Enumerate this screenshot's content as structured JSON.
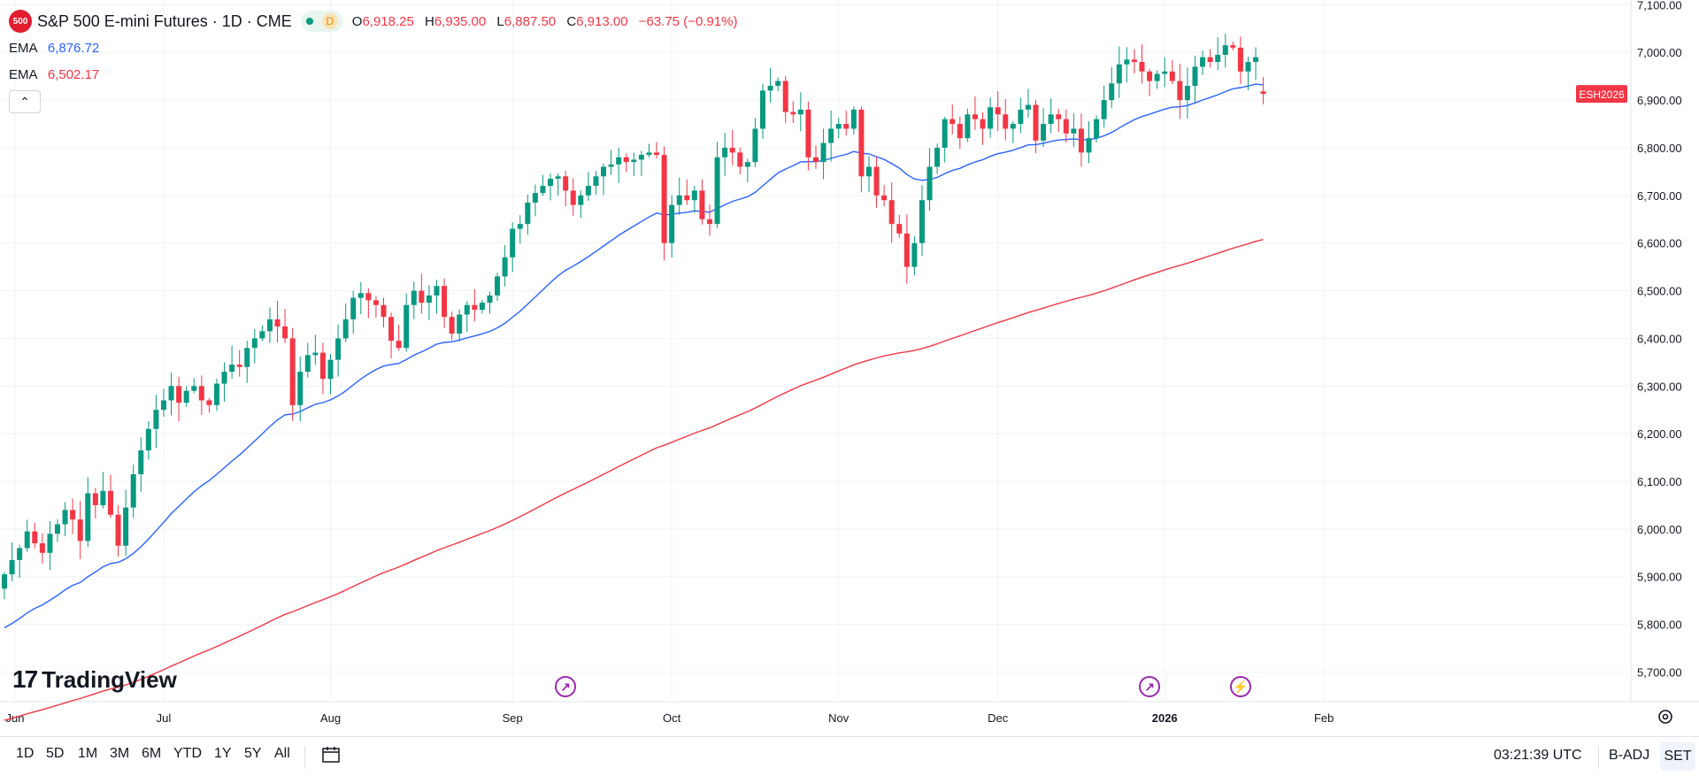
{
  "header": {
    "logo_text": "500",
    "title": "S&P 500 E-mini Futures · 1D · CME",
    "status_badge": "D",
    "ohlc": {
      "open_key": "O",
      "open": "6,918.25",
      "high_key": "H",
      "high": "6,935.00",
      "low_key": "L",
      "low": "6,887.50",
      "close_key": "C",
      "close": "6,913.00",
      "change": "−63.75 (−0.91%)"
    }
  },
  "indicators": [
    {
      "name": "EMA",
      "value": "6,876.72",
      "color": "#2962ff"
    },
    {
      "name": "EMA",
      "value": "6,502.17",
      "color": "#f23645"
    }
  ],
  "logo": {
    "mark": "17",
    "text": "TradingView"
  },
  "price_tag": {
    "label": "ESH2026",
    "color": "#f23645"
  },
  "colors": {
    "up": "#089981",
    "down": "#f23645",
    "ema_fast": "#2962ff",
    "ema_slow": "#f23645",
    "grid": "#f0f3fa"
  },
  "events": [
    {
      "date_index": 74,
      "icon": "arrow-circle-icon",
      "glyph": "↗"
    },
    {
      "date_index": 151,
      "icon": "arrow-circle-icon",
      "glyph": "↗"
    },
    {
      "date_index": 163,
      "icon": "lightning-circle-icon",
      "glyph": "⚡"
    }
  ],
  "bottom_bar": {
    "ranges": [
      "1D",
      "5D",
      "1M",
      "3M",
      "6M",
      "YTD",
      "1Y",
      "5Y",
      "All"
    ],
    "time": "03:21:39 UTC",
    "adjustment": "B-ADJ",
    "session": "SET"
  },
  "chart_data": {
    "type": "candlestick",
    "title": "S&P 500 E-mini Futures",
    "x_tick_labels": [
      "Jun",
      "Jul",
      "Aug",
      "Sep",
      "Oct",
      "Nov",
      "Dec",
      "2026",
      "Feb"
    ],
    "y_tick_labels": [
      "7,100.00",
      "7,000.00",
      "6,900.00",
      "6,800.00",
      "6,700.00",
      "6,600.00",
      "6,500.00",
      "6,400.00",
      "6,300.00",
      "6,200.00",
      "6,100.00",
      "6,000.00",
      "5,900.00",
      "5,800.00",
      "5,700.00"
    ],
    "ylim": [
      5660,
      7110
    ],
    "grid": true,
    "closes": [
      5905,
      5935,
      5960,
      5995,
      5970,
      5950,
      5990,
      6010,
      6040,
      6020,
      5975,
      6075,
      6050,
      6080,
      6030,
      5965,
      6045,
      6115,
      6165,
      6210,
      6250,
      6270,
      6300,
      6265,
      6290,
      6300,
      6270,
      6260,
      6305,
      6330,
      6345,
      6340,
      6380,
      6400,
      6415,
      6440,
      6425,
      6400,
      6260,
      6330,
      6365,
      6370,
      6315,
      6355,
      6400,
      6440,
      6485,
      6495,
      6480,
      6470,
      6445,
      6395,
      6380,
      6470,
      6500,
      6475,
      6490,
      6510,
      6445,
      6410,
      6450,
      6470,
      6460,
      6475,
      6490,
      6530,
      6570,
      6630,
      6640,
      6685,
      6705,
      6720,
      6735,
      6740,
      6710,
      6680,
      6700,
      6720,
      6740,
      6760,
      6765,
      6780,
      6770,
      6775,
      6785,
      6790,
      6785,
      6600,
      6680,
      6700,
      6690,
      6710,
      6650,
      6640,
      6780,
      6800,
      6790,
      6760,
      6770,
      6840,
      6920,
      6930,
      6940,
      6875,
      6870,
      6880,
      6780,
      6770,
      6810,
      6840,
      6850,
      6840,
      6880,
      6740,
      6760,
      6700,
      6690,
      6640,
      6620,
      6550,
      6600,
      6690,
      6760,
      6800,
      6860,
      6850,
      6820,
      6870,
      6860,
      6840,
      6885,
      6870,
      6840,
      6850,
      6880,
      6890,
      6815,
      6850,
      6870,
      6860,
      6830,
      6840,
      6790,
      6820,
      6860,
      6900,
      6935,
      6975,
      6985,
      6980,
      6960,
      6940,
      6955,
      6960,
      6940,
      6900,
      6930,
      6970,
      6990,
      6980,
      6995,
      7015,
      7010,
      6960,
      6980,
      6990,
      6913
    ],
    "series": [
      {
        "name": "EMA",
        "last_value": 6876.72
      },
      {
        "name": "EMA",
        "last_value": 6502.17
      }
    ],
    "last_price": 6913.0
  }
}
